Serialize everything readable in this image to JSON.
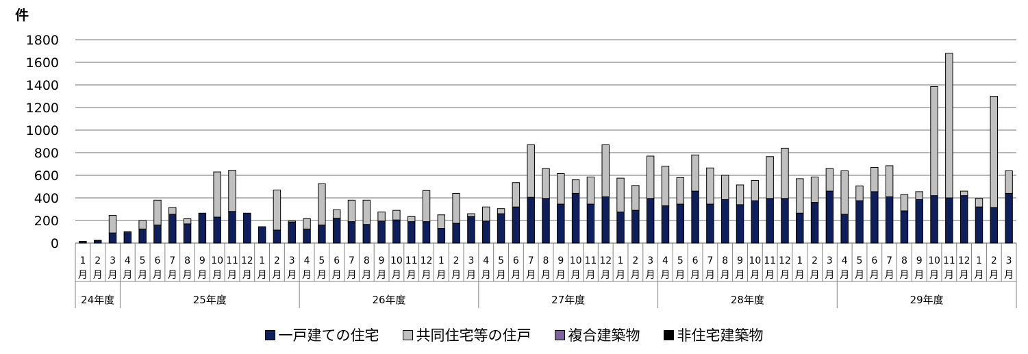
{
  "chart_data": {
    "type": "bar",
    "stacked": true,
    "y_unit": "件",
    "ylim": [
      0,
      1800
    ],
    "yticks": [
      0,
      200,
      400,
      600,
      800,
      1000,
      1200,
      1400,
      1600,
      1800
    ],
    "grid": true,
    "legend_position": "bottom",
    "month_suffix": "月",
    "categories": [
      "1",
      "2",
      "3",
      "4",
      "5",
      "6",
      "7",
      "8",
      "9",
      "10",
      "11",
      "12",
      "1",
      "2",
      "3",
      "4",
      "5",
      "6",
      "7",
      "8",
      "9",
      "10",
      "11",
      "12",
      "1",
      "2",
      "3",
      "4",
      "5",
      "6",
      "7",
      "8",
      "9",
      "10",
      "11",
      "12",
      "1",
      "2",
      "3",
      "4",
      "5",
      "6",
      "7",
      "8",
      "9",
      "10",
      "11",
      "12",
      "1",
      "2",
      "3",
      "4",
      "5",
      "6",
      "7",
      "8",
      "9",
      "10",
      "11",
      "12",
      "1",
      "2",
      "3"
    ],
    "year_groups": [
      {
        "label": "24年度",
        "start": 0,
        "count": 3
      },
      {
        "label": "25年度",
        "start": 3,
        "count": 12
      },
      {
        "label": "26年度",
        "start": 15,
        "count": 12
      },
      {
        "label": "27年度",
        "start": 27,
        "count": 12
      },
      {
        "label": "28年度",
        "start": 39,
        "count": 12
      },
      {
        "label": "29年度",
        "start": 51,
        "count": 12
      }
    ],
    "series": [
      {
        "name": "一戸建ての住宅",
        "color": "#0f1f5c",
        "values": [
          15,
          20,
          90,
          100,
          125,
          160,
          255,
          170,
          265,
          230,
          280,
          265,
          145,
          115,
          185,
          125,
          160,
          220,
          190,
          165,
          195,
          205,
          190,
          190,
          130,
          175,
          235,
          195,
          260,
          320,
          405,
          395,
          345,
          440,
          345,
          410,
          275,
          290,
          395,
          330,
          345,
          460,
          345,
          385,
          340,
          375,
          395,
          395,
          265,
          360,
          460,
          255,
          375,
          455,
          410,
          285,
          385,
          420,
          400,
          420,
          320,
          315,
          440
        ]
      },
      {
        "name": "共同住宅等の住戸",
        "color": "#c0c0c0",
        "values": [
          0,
          5,
          155,
          0,
          75,
          220,
          60,
          45,
          0,
          400,
          365,
          0,
          0,
          355,
          10,
          90,
          365,
          75,
          190,
          215,
          80,
          85,
          45,
          275,
          120,
          265,
          25,
          125,
          45,
          215,
          465,
          265,
          270,
          120,
          240,
          460,
          300,
          220,
          375,
          350,
          235,
          320,
          320,
          215,
          175,
          180,
          370,
          445,
          305,
          225,
          200,
          385,
          130,
          215,
          275,
          145,
          70,
          965,
          1280,
          40,
          75,
          985,
          200
        ]
      },
      {
        "name": "複合建築物",
        "color": "#8064a2",
        "values": [
          0,
          0,
          0,
          0,
          0,
          0,
          0,
          0,
          0,
          0,
          0,
          0,
          0,
          0,
          0,
          0,
          0,
          0,
          0,
          0,
          0,
          0,
          0,
          0,
          0,
          0,
          0,
          0,
          0,
          0,
          0,
          0,
          0,
          0,
          0,
          0,
          0,
          0,
          0,
          0,
          0,
          0,
          0,
          0,
          0,
          0,
          0,
          0,
          0,
          0,
          0,
          0,
          0,
          0,
          0,
          0,
          0,
          0,
          0,
          0,
          0,
          0,
          0
        ]
      },
      {
        "name": "非住宅建築物",
        "color": "#000000",
        "values": [
          0,
          0,
          0,
          0,
          0,
          0,
          0,
          0,
          0,
          0,
          0,
          0,
          0,
          0,
          0,
          0,
          0,
          0,
          0,
          0,
          0,
          0,
          0,
          0,
          0,
          0,
          0,
          0,
          0,
          0,
          0,
          0,
          0,
          0,
          0,
          0,
          0,
          0,
          0,
          0,
          0,
          0,
          0,
          0,
          0,
          0,
          0,
          0,
          0,
          0,
          0,
          0,
          0,
          0,
          0,
          0,
          0,
          0,
          0,
          0,
          0,
          0,
          0
        ]
      }
    ]
  }
}
